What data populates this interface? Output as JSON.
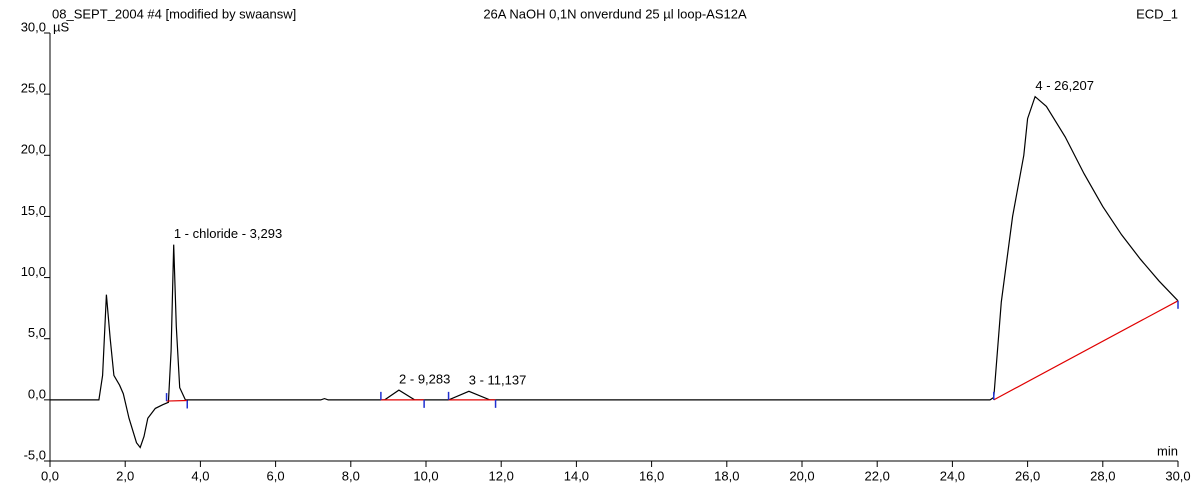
{
  "chart_data": {
    "type": "line",
    "header_left": "08_SEPT_2004 #4 [modified by swaansw]",
    "title": "26A NaOH 0,1N onverdund 25 µl loop-AS12A",
    "header_right": "ECD_1",
    "y_label": "µS",
    "x_label": "min",
    "xlim": [
      0,
      30
    ],
    "ylim": [
      -5,
      30
    ],
    "xticks": [
      {
        "value": 0,
        "label": "0,0"
      },
      {
        "value": 2,
        "label": "2,0"
      },
      {
        "value": 4,
        "label": "4,0"
      },
      {
        "value": 6,
        "label": "6,0"
      },
      {
        "value": 8,
        "label": "8,0"
      },
      {
        "value": 10,
        "label": "10,0"
      },
      {
        "value": 12,
        "label": "12,0"
      },
      {
        "value": 14,
        "label": "14,0"
      },
      {
        "value": 16,
        "label": "16,0"
      },
      {
        "value": 18,
        "label": "18,0"
      },
      {
        "value": 20,
        "label": "20,0"
      },
      {
        "value": 22,
        "label": "22,0"
      },
      {
        "value": 24,
        "label": "24,0"
      },
      {
        "value": 26,
        "label": "26,0"
      },
      {
        "value": 28,
        "label": "28,0"
      },
      {
        "value": 30,
        "label": "30,0"
      }
    ],
    "yticks": [
      {
        "value": -5,
        "label": "-5,0"
      },
      {
        "value": 0,
        "label": "0,0"
      },
      {
        "value": 5,
        "label": "5,0"
      },
      {
        "value": 10,
        "label": "10,0"
      },
      {
        "value": 15,
        "label": "15,0"
      },
      {
        "value": 20,
        "label": "20,0"
      },
      {
        "value": 25,
        "label": "25,0"
      },
      {
        "value": 30,
        "label": "30,0"
      }
    ],
    "series": [
      {
        "name": "ECD_1",
        "color": "#000000",
        "x": [
          0,
          1.3,
          1.4,
          1.5,
          1.6,
          1.7,
          1.85,
          1.95,
          2.1,
          2.3,
          2.4,
          2.5,
          2.6,
          2.8,
          3.0,
          3.15,
          3.22,
          3.29,
          3.36,
          3.45,
          3.6,
          7.2,
          7.3,
          7.4,
          8.9,
          9.28,
          9.7,
          10.6,
          11.14,
          11.7,
          25.0,
          25.1,
          25.3,
          25.6,
          25.9,
          26.0,
          26.2,
          26.5,
          27,
          27.5,
          28,
          28.5,
          29,
          29.5,
          30
        ],
        "values": [
          0,
          0,
          2,
          8.6,
          5,
          2,
          1.2,
          0.5,
          -1.5,
          -3.5,
          -3.9,
          -3,
          -1.5,
          -0.7,
          -0.4,
          -0.2,
          4,
          12.7,
          6,
          1,
          0,
          0,
          0.1,
          0,
          0,
          0.8,
          0,
          0,
          0.7,
          0,
          0,
          0.2,
          8,
          15,
          20,
          23,
          24.8,
          24,
          21.5,
          18.5,
          15.8,
          13.5,
          11.5,
          9.7,
          8.1
        ]
      }
    ],
    "baseline_color": "#e00000",
    "delimiter_color": "#2030d0",
    "baselines": [
      {
        "x": [
          3.1,
          3.65
        ],
        "y": [
          -0.1,
          -0.05
        ]
      },
      {
        "x": [
          8.8,
          9.95
        ],
        "y": [
          0,
          0
        ]
      },
      {
        "x": [
          10.6,
          11.85
        ],
        "y": [
          0,
          0
        ]
      },
      {
        "x": [
          25.1,
          30
        ],
        "y": [
          0,
          8.1
        ]
      }
    ],
    "peaks": [
      {
        "label": "1 - chloride - 3,293",
        "time": 3.293,
        "height": 12.7
      },
      {
        "label": "2 - 9,283",
        "time": 9.283,
        "height": 0.8
      },
      {
        "label": "3 - 11,137",
        "time": 11.137,
        "height": 0.7
      },
      {
        "label": "4 - 26,207",
        "time": 26.207,
        "height": 24.8
      }
    ]
  }
}
